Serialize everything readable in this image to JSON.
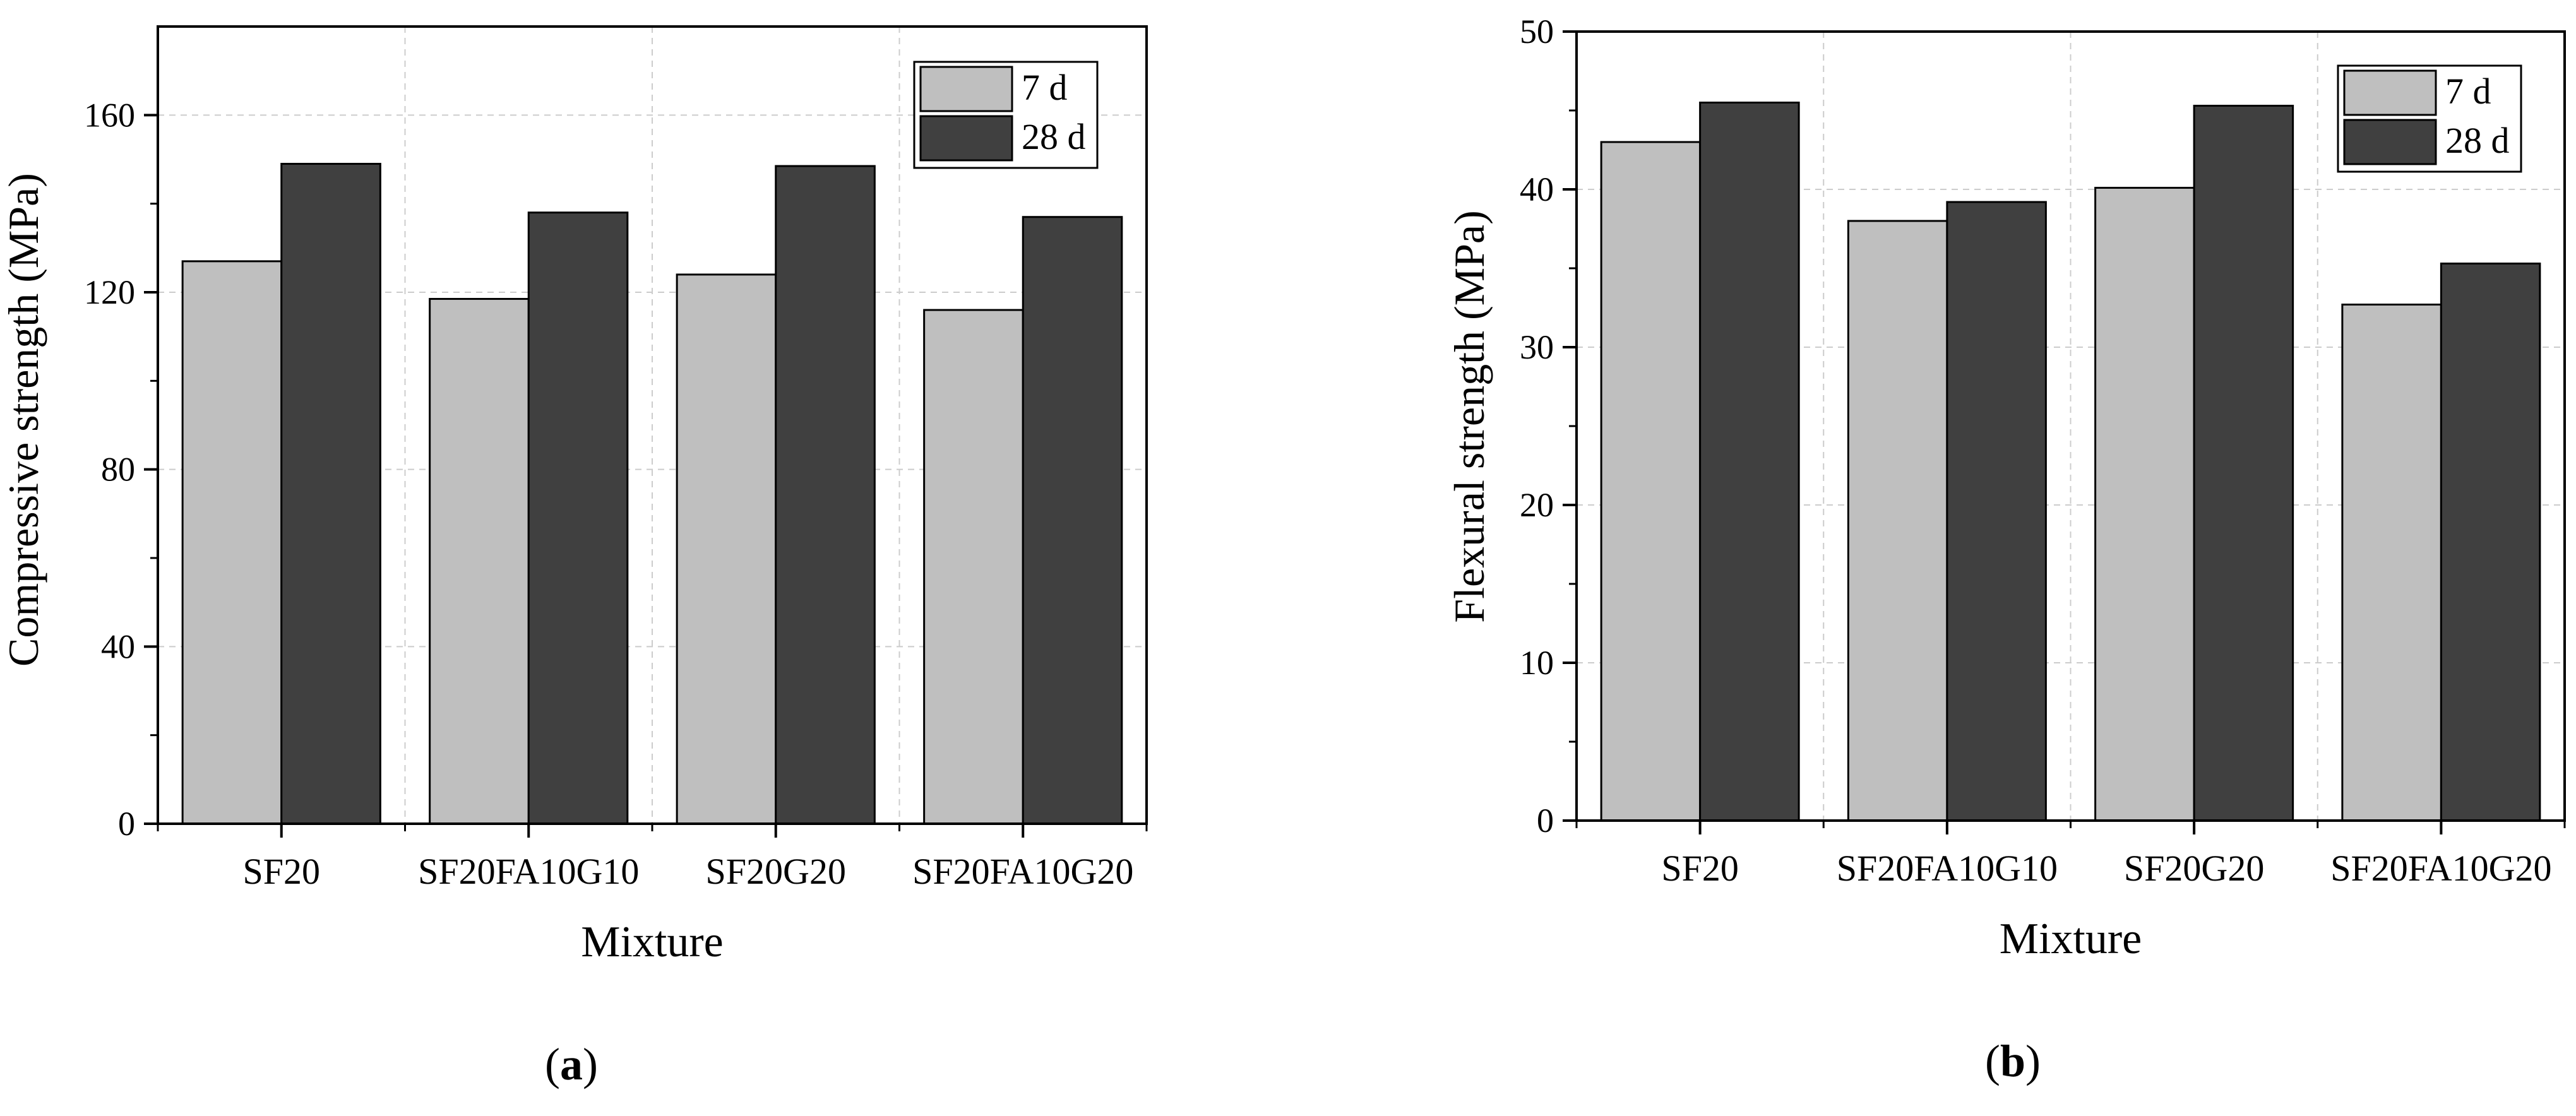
{
  "chart_data": [
    {
      "type": "bar",
      "panel": "a",
      "caption_letter": "a",
      "categories": [
        "SF20",
        "SF20FA10G10",
        "SF20G20",
        "SF20FA10G20"
      ],
      "series": [
        {
          "name": "7 d",
          "color": "#bfbfbf",
          "values": [
            127,
            118.5,
            124,
            116
          ]
        },
        {
          "name": "28 d",
          "color": "#404040",
          "values": [
            149,
            138,
            148.5,
            137
          ]
        }
      ],
      "xlabel": "Mixture",
      "ylabel": "Compressive strength (MPa)",
      "ylim": [
        0,
        180
      ],
      "yticks": [
        0,
        40,
        80,
        120,
        160
      ],
      "minor_step": 20,
      "grid": true,
      "legend": "top-right"
    },
    {
      "type": "bar",
      "panel": "b",
      "caption_letter": "b",
      "categories": [
        "SF20",
        "SF20FA10G10",
        "SF20G20",
        "SF20FA10G20"
      ],
      "series": [
        {
          "name": "7 d",
          "color": "#bfbfbf",
          "values": [
            43,
            38,
            40.1,
            32.7
          ]
        },
        {
          "name": "28 d",
          "color": "#404040",
          "values": [
            45.5,
            39.2,
            45.3,
            35.3
          ]
        }
      ],
      "xlabel": "Mixture",
      "ylabel": "Flexural strength (MPa)",
      "ylim": [
        0,
        50
      ],
      "yticks": [
        0,
        10,
        20,
        30,
        40,
        50
      ],
      "minor_step": 5,
      "grid": true,
      "legend": "top-right"
    }
  ]
}
